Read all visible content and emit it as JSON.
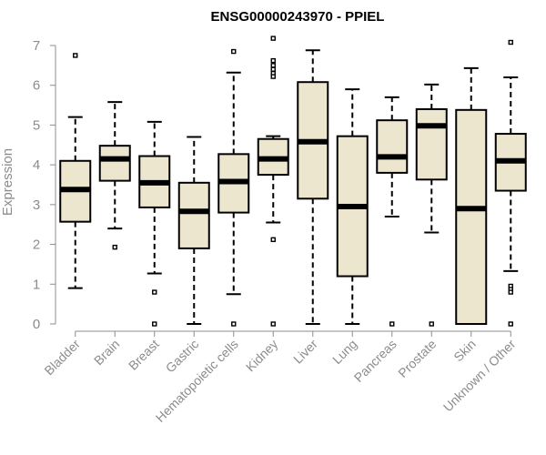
{
  "chart_data": {
    "type": "box",
    "title": "ENSG00000243970 - PPIEL",
    "xlabel": "",
    "ylabel": "Expression",
    "ylim": [
      0,
      7
    ],
    "yticks": [
      0,
      1,
      2,
      3,
      4,
      5,
      6,
      7
    ],
    "categories": [
      "Bladder",
      "Brain",
      "Breast",
      "Gastric",
      "Hematopoietic cells",
      "Kidney",
      "Liver",
      "Lung",
      "Pancreas",
      "Prostate",
      "Skin",
      "Unknown / Other"
    ],
    "boxes": [
      {
        "category": "Bladder",
        "whisker_low": 0.9,
        "q1": 2.57,
        "median": 3.38,
        "q3": 4.1,
        "whisker_high": 5.2,
        "outliers": [
          6.75
        ]
      },
      {
        "category": "Brain",
        "whisker_low": 2.4,
        "q1": 3.6,
        "median": 4.15,
        "q3": 4.48,
        "whisker_high": 5.58,
        "outliers": [
          1.93
        ]
      },
      {
        "category": "Breast",
        "whisker_low": 1.27,
        "q1": 2.93,
        "median": 3.55,
        "q3": 4.22,
        "whisker_high": 5.08,
        "outliers": [
          0.8,
          0.0
        ]
      },
      {
        "category": "Gastric",
        "whisker_low": 0.0,
        "q1": 1.9,
        "median": 2.83,
        "q3": 3.55,
        "whisker_high": 4.7,
        "outliers": []
      },
      {
        "category": "Hematopoietic cells",
        "whisker_low": 0.75,
        "q1": 2.8,
        "median": 3.58,
        "q3": 4.27,
        "whisker_high": 6.32,
        "outliers": [
          6.85,
          0.0
        ]
      },
      {
        "category": "Kidney",
        "whisker_low": 2.55,
        "q1": 3.75,
        "median": 4.15,
        "q3": 4.65,
        "whisker_high": 4.72,
        "outliers": [
          7.18,
          6.62,
          6.5,
          6.4,
          6.3,
          6.22,
          2.12,
          0.0
        ]
      },
      {
        "category": "Liver",
        "whisker_low": 0.0,
        "q1": 3.15,
        "median": 4.58,
        "q3": 6.08,
        "whisker_high": 6.88,
        "outliers": []
      },
      {
        "category": "Lung",
        "whisker_low": 0.0,
        "q1": 1.2,
        "median": 2.95,
        "q3": 4.72,
        "whisker_high": 5.9,
        "outliers": []
      },
      {
        "category": "Pancreas",
        "whisker_low": 2.7,
        "q1": 3.8,
        "median": 4.2,
        "q3": 5.12,
        "whisker_high": 5.7,
        "outliers": [
          0.0
        ]
      },
      {
        "category": "Prostate",
        "whisker_low": 2.3,
        "q1": 3.63,
        "median": 4.98,
        "q3": 5.4,
        "whisker_high": 6.02,
        "outliers": [
          0.0
        ]
      },
      {
        "category": "Skin",
        "whisker_low": 0.0,
        "q1": 0.0,
        "median": 2.9,
        "q3": 5.38,
        "whisker_high": 6.43,
        "outliers": []
      },
      {
        "category": "Unknown / Other",
        "whisker_low": 1.33,
        "q1": 3.35,
        "median": 4.1,
        "q3": 4.78,
        "whisker_high": 6.2,
        "outliers": [
          7.08,
          0.95,
          0.87,
          0.8,
          0.0
        ]
      }
    ],
    "colors": {
      "box_fill": "#ede6cf",
      "box_stroke": "#000000",
      "axis_text": "#8c8c8c"
    },
    "grid": false,
    "legend": "none"
  }
}
